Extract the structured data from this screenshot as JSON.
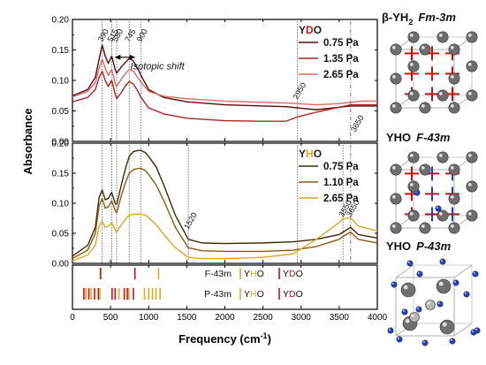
{
  "chart_data": [
    {
      "type": "line",
      "panel": "top",
      "legend_title": {
        "prefix": "Y",
        "accent": "D",
        "suffix": "O"
      },
      "legend_position": "top-right",
      "ylim": [
        0,
        0.2
      ],
      "yticks": [
        "0.00",
        "0.05",
        "0.10",
        "0.15",
        "0.20"
      ],
      "series": [
        {
          "name": "0.75 Pa",
          "color": "#5a0a0a",
          "x": [
            0,
            200,
            300,
            350,
            390,
            430,
            470,
            515,
            560,
            580,
            640,
            700,
            745,
            800,
            860,
            900,
            1000,
            1200,
            1500,
            2000,
            2500,
            2800,
            2950,
            3200,
            3500,
            3650,
            3800,
            4000
          ],
          "y": [
            0.075,
            0.085,
            0.105,
            0.135,
            0.158,
            0.14,
            0.128,
            0.14,
            0.118,
            0.112,
            0.122,
            0.13,
            0.136,
            0.132,
            0.118,
            0.108,
            0.085,
            0.072,
            0.065,
            0.06,
            0.058,
            0.057,
            0.055,
            0.052,
            0.056,
            0.058,
            0.058,
            0.058
          ]
        },
        {
          "name": "1.35 Pa",
          "color": "#b22222",
          "x": [
            0,
            200,
            300,
            350,
            390,
            430,
            470,
            515,
            560,
            580,
            640,
            700,
            745,
            800,
            860,
            900,
            1000,
            1200,
            1500,
            2000,
            2500,
            2800,
            2950,
            3200,
            3500,
            3650,
            3800,
            4000
          ],
          "y": [
            0.065,
            0.072,
            0.085,
            0.105,
            0.115,
            0.1,
            0.09,
            0.1,
            0.078,
            0.07,
            0.08,
            0.092,
            0.098,
            0.094,
            0.082,
            0.072,
            0.055,
            0.045,
            0.038,
            0.034,
            0.033,
            0.033,
            0.04,
            0.048,
            0.056,
            0.06,
            0.06,
            0.06
          ]
        },
        {
          "name": "2.65 Pa",
          "color": "#e06666",
          "x": [
            0,
            200,
            300,
            350,
            390,
            430,
            470,
            515,
            560,
            580,
            640,
            700,
            745,
            800,
            860,
            900,
            1000,
            1200,
            1500,
            2000,
            2500,
            2800,
            2950,
            3200,
            3500,
            3650,
            3800,
            4000
          ],
          "y": [
            0.073,
            0.082,
            0.096,
            0.12,
            0.135,
            0.12,
            0.108,
            0.118,
            0.095,
            0.09,
            0.102,
            0.112,
            0.118,
            0.115,
            0.104,
            0.097,
            0.082,
            0.074,
            0.07,
            0.066,
            0.064,
            0.063,
            0.062,
            0.06,
            0.062,
            0.064,
            0.066,
            0.066
          ]
        }
      ],
      "vlines": [
        {
          "x": 390,
          "label": "390"
        },
        {
          "x": 515,
          "label": "515"
        },
        {
          "x": 580,
          "label": "580"
        },
        {
          "x": 745,
          "label": "745"
        },
        {
          "x": 900,
          "label": "900"
        },
        {
          "x": 2950,
          "label": "2950"
        },
        {
          "x": 3650,
          "label": "3650"
        }
      ],
      "annotation": "Isotopic shift"
    },
    {
      "type": "line",
      "panel": "middle",
      "legend_title": {
        "prefix": "Y",
        "accent": "H",
        "suffix": "O"
      },
      "legend_position": "top-right",
      "ylim": [
        0,
        0.2
      ],
      "yticks": [
        "0.00",
        "0.05",
        "0.10",
        "0.15",
        "0.20"
      ],
      "series": [
        {
          "name": "0.75 Pa",
          "color": "#3b2a0a",
          "x": [
            0,
            200,
            300,
            350,
            390,
            430,
            470,
            515,
            560,
            580,
            640,
            700,
            745,
            800,
            860,
            900,
            960,
            1000,
            1100,
            1200,
            1350,
            1520,
            1700,
            2000,
            2500,
            2900,
            3200,
            3500,
            3550,
            3650,
            3750,
            4000
          ],
          "y": [
            0.012,
            0.03,
            0.06,
            0.11,
            0.122,
            0.106,
            0.108,
            0.118,
            0.1,
            0.098,
            0.13,
            0.16,
            0.178,
            0.186,
            0.188,
            0.188,
            0.184,
            0.178,
            0.16,
            0.13,
            0.08,
            0.04,
            0.034,
            0.033,
            0.034,
            0.036,
            0.04,
            0.048,
            0.052,
            0.06,
            0.048,
            0.042
          ]
        },
        {
          "name": "1.10 Pa",
          "color": "#8a5a14",
          "x": [
            0,
            200,
            300,
            350,
            390,
            430,
            470,
            515,
            560,
            580,
            640,
            700,
            745,
            800,
            860,
            900,
            960,
            1000,
            1100,
            1200,
            1350,
            1520,
            1700,
            2000,
            2500,
            2900,
            3200,
            3500,
            3550,
            3650,
            3750,
            4000
          ],
          "y": [
            0.008,
            0.022,
            0.05,
            0.096,
            0.108,
            0.092,
            0.094,
            0.104,
            0.088,
            0.084,
            0.112,
            0.136,
            0.15,
            0.156,
            0.158,
            0.158,
            0.154,
            0.148,
            0.13,
            0.104,
            0.06,
            0.026,
            0.021,
            0.02,
            0.02,
            0.022,
            0.028,
            0.04,
            0.045,
            0.052,
            0.04,
            0.034
          ]
        },
        {
          "name": "2.65 Pa",
          "color": "#e0a821",
          "x": [
            0,
            200,
            300,
            350,
            390,
            430,
            470,
            515,
            560,
            580,
            640,
            700,
            745,
            800,
            860,
            900,
            960,
            1000,
            1100,
            1200,
            1350,
            1520,
            1700,
            2000,
            2500,
            2900,
            3200,
            3500,
            3550,
            3650,
            3750,
            4000
          ],
          "y": [
            0.004,
            0.014,
            0.03,
            0.062,
            0.07,
            0.06,
            0.062,
            0.068,
            0.056,
            0.052,
            0.064,
            0.074,
            0.08,
            0.082,
            0.082,
            0.082,
            0.08,
            0.076,
            0.064,
            0.048,
            0.026,
            0.01,
            0.008,
            0.008,
            0.01,
            0.016,
            0.04,
            0.068,
            0.074,
            0.076,
            0.062,
            0.054
          ]
        }
      ],
      "vlines": [
        {
          "x": 390
        },
        {
          "x": 515
        },
        {
          "x": 580
        },
        {
          "x": 745
        },
        {
          "x": 900
        },
        {
          "x": 1520,
          "label": "1520"
        },
        {
          "x": 2950
        },
        {
          "x": 3550,
          "label": "3550"
        },
        {
          "x": 3650,
          "label": "3650"
        }
      ]
    },
    {
      "type": "bar",
      "panel": "bottom",
      "rows": [
        {
          "label": "F-43m",
          "legend": [
            {
              "prefix": "Y",
              "accent": "H",
              "suffix": "O",
              "color": "#e0a821"
            },
            {
              "prefix": "Y",
              "accent": "D",
              "suffix": "O",
              "color": "#cc1111"
            }
          ],
          "sticks": [
            {
              "x": 365,
              "color": "#e0a821"
            },
            {
              "x": 370,
              "color": "#cc1111"
            },
            {
              "x": 820,
              "color": "#cc1111"
            },
            {
              "x": 1130,
              "color": "#e0a821"
            }
          ]
        },
        {
          "label": "P-43m",
          "legend": [
            {
              "prefix": "Y",
              "accent": "H",
              "suffix": "O",
              "color": "#e0a821"
            },
            {
              "prefix": "Y",
              "accent": "D",
              "suffix": "O",
              "color": "#cc1111"
            }
          ],
          "sticks": [
            {
              "x": 150,
              "color": "#cc1111"
            },
            {
              "x": 175,
              "color": "#e0a821"
            },
            {
              "x": 215,
              "color": "#cc1111"
            },
            {
              "x": 245,
              "color": "#e0a821"
            },
            {
              "x": 290,
              "color": "#cc1111"
            },
            {
              "x": 340,
              "color": "#cc1111"
            },
            {
              "x": 360,
              "color": "#e0a821"
            },
            {
              "x": 520,
              "color": "#cc1111"
            },
            {
              "x": 560,
              "color": "#cc1111"
            },
            {
              "x": 610,
              "color": "#e0a821"
            },
            {
              "x": 680,
              "color": "#cc1111"
            },
            {
              "x": 720,
              "color": "#cc1111"
            },
            {
              "x": 740,
              "color": "#e0a821"
            },
            {
              "x": 800,
              "color": "#cc1111"
            },
            {
              "x": 945,
              "color": "#e0a821"
            },
            {
              "x": 1000,
              "color": "#e0a821"
            },
            {
              "x": 1050,
              "color": "#e0a821"
            },
            {
              "x": 1095,
              "color": "#e0a821"
            },
            {
              "x": 1150,
              "color": "#e0a821"
            }
          ]
        }
      ]
    }
  ],
  "axes": {
    "xlim": [
      0,
      4000
    ],
    "xticks": [
      "0",
      "500",
      "1000",
      "1500",
      "2000",
      "2500",
      "3000",
      "3500",
      "4000"
    ],
    "xlabel": "Frequency (cm",
    "xlabel_sup": "-1",
    "xlabel_end": ")",
    "ylabel": "Absorbance"
  },
  "structures": [
    {
      "title": "β-YH",
      "sub": "2",
      "space_group": "Fm-3m"
    },
    {
      "title": "YHO",
      "space_group": "F-43m"
    },
    {
      "title": "YHO",
      "space_group": "P-43m"
    }
  ],
  "colors": {
    "accent_red": "#cc1111",
    "accent_gold": "#e0a821",
    "dark_text": "#222222"
  }
}
